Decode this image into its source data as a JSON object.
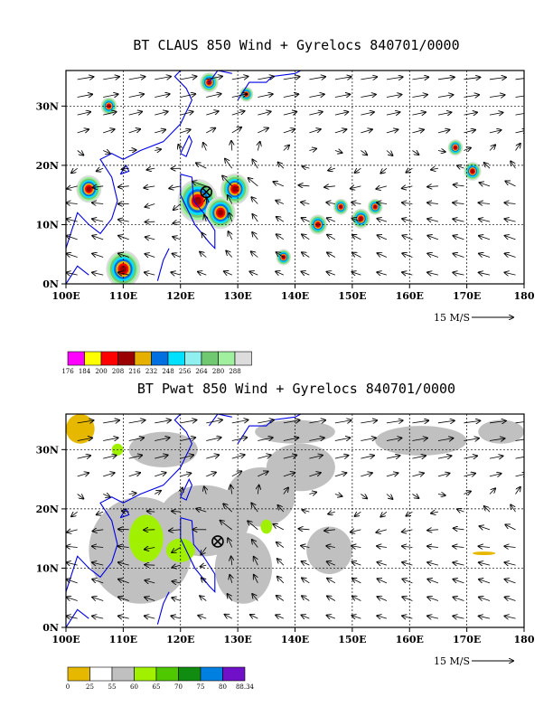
{
  "chart_data": [
    {
      "type": "map",
      "title": "BT CLAUS 850 Wind + Gyrelocs 840701/0000",
      "x_ticks": [
        "100E",
        "110E",
        "120E",
        "130E",
        "140E",
        "150E",
        "160E",
        "170E",
        "180"
      ],
      "y_ticks": [
        "0N",
        "10N",
        "20N",
        "30N"
      ],
      "lon_range": [
        100,
        180
      ],
      "lat_range": [
        0,
        36
      ],
      "grid": "dashed",
      "reference_vector": "15 M/S",
      "gyre_center": {
        "lon": 124.5,
        "lat": 15.5
      },
      "colorbar": {
        "labels": [
          "176",
          "184",
          "200",
          "208",
          "216",
          "232",
          "248",
          "256",
          "264",
          "280",
          "288"
        ],
        "colors": [
          "#ff00ff",
          "#ffff00",
          "#ff0000",
          "#9b0000",
          "#e6b000",
          "#0070e0",
          "#00e0ff",
          "#90f0f0",
          "#70c870",
          "#a0f0a0",
          "#dcdcdc"
        ]
      },
      "contour_blobs": [
        {
          "lon": 104,
          "lat": 16,
          "r": 2.2
        },
        {
          "lon": 110,
          "lat": 2.5,
          "r": 3.0
        },
        {
          "lon": 123,
          "lat": 14,
          "r": 3.5
        },
        {
          "lon": 127,
          "lat": 12,
          "r": 2.6
        },
        {
          "lon": 129.5,
          "lat": 16,
          "r": 2.5
        },
        {
          "lon": 138,
          "lat": 4.5,
          "r": 1.3
        },
        {
          "lon": 144,
          "lat": 10,
          "r": 1.6
        },
        {
          "lon": 148,
          "lat": 13,
          "r": 1.3
        },
        {
          "lon": 151.5,
          "lat": 11,
          "r": 1.6
        },
        {
          "lon": 154,
          "lat": 13,
          "r": 1.3
        },
        {
          "lon": 107.5,
          "lat": 30,
          "r": 1.4
        },
        {
          "lon": 125,
          "lat": 34,
          "r": 1.6
        },
        {
          "lon": 131.5,
          "lat": 32,
          "r": 1.2
        },
        {
          "lon": 168,
          "lat": 23,
          "r": 1.3
        },
        {
          "lon": 171,
          "lat": 19,
          "r": 1.5
        }
      ]
    },
    {
      "type": "map",
      "title": "BT Pwat 850 Wind + Gyrelocs 840701/0000",
      "x_ticks": [
        "100E",
        "110E",
        "120E",
        "130E",
        "140E",
        "150E",
        "160E",
        "170E",
        "180"
      ],
      "y_ticks": [
        "0N",
        "10N",
        "20N",
        "30N"
      ],
      "lon_range": [
        100,
        180
      ],
      "lat_range": [
        0,
        36
      ],
      "grid": "dashed",
      "reference_vector": "15 M/S",
      "gyre_center": {
        "lon": 126.5,
        "lat": 14.5
      },
      "colorbar": {
        "labels": [
          "0",
          "25",
          "55",
          "60",
          "65",
          "70",
          "75",
          "80",
          "88.34"
        ],
        "colors": [
          "#e6b800",
          "#ffffff",
          "#c0c0c0",
          "#a0f000",
          "#50c800",
          "#108c10",
          "#0080e0",
          "#7010c8"
        ]
      },
      "gray_regions": [
        {
          "lon": 113,
          "lat": 13,
          "rx": 9,
          "ry": 9
        },
        {
          "lon": 124,
          "lat": 18,
          "rx": 8,
          "ry": 6
        },
        {
          "lon": 134,
          "lat": 22,
          "rx": 6,
          "ry": 5
        },
        {
          "lon": 141,
          "lat": 27,
          "rx": 6,
          "ry": 4
        },
        {
          "lon": 131,
          "lat": 10,
          "rx": 5,
          "ry": 6
        },
        {
          "lon": 146,
          "lat": 13,
          "rx": 4,
          "ry": 4
        },
        {
          "lon": 162,
          "lat": 31.5,
          "rx": 8,
          "ry": 2.5
        },
        {
          "lon": 176,
          "lat": 33,
          "rx": 4,
          "ry": 2
        },
        {
          "lon": 117,
          "lat": 30,
          "rx": 6,
          "ry": 3
        },
        {
          "lon": 140,
          "lat": 33,
          "rx": 7,
          "ry": 2
        }
      ],
      "green_regions": [
        {
          "lon": 114,
          "lat": 15,
          "rx": 3,
          "ry": 4
        },
        {
          "lon": 120,
          "lat": 13,
          "rx": 2.5,
          "ry": 2
        },
        {
          "lon": 135,
          "lat": 17,
          "rx": 1,
          "ry": 1.2
        },
        {
          "lon": 109,
          "lat": 30,
          "rx": 1,
          "ry": 1
        }
      ],
      "yellow_regions": [
        {
          "lon": 102.5,
          "lat": 33.5,
          "rx": 2.5,
          "ry": 2.5
        },
        {
          "lon": 173,
          "lat": 12.5,
          "rx": 2,
          "ry": 0.3
        }
      ]
    }
  ]
}
